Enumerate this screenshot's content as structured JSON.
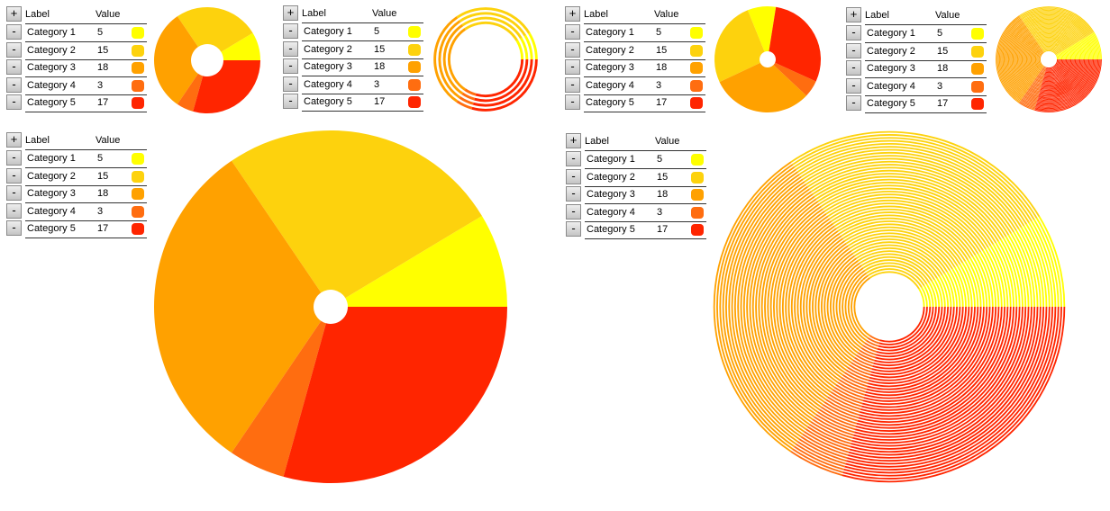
{
  "table": {
    "add_label": "+",
    "remove_label": "-",
    "label_header": "Label",
    "value_header": "Value"
  },
  "colors": [
    "#ffff00",
    "#fdd20d",
    "#ffa100",
    "#ff6d10",
    "#ff2500"
  ],
  "chart_data": [
    {
      "type": "pie",
      "style": "donut",
      "categories": [
        "Category 1",
        "Category 2",
        "Category 3",
        "Category 4",
        "Category 5"
      ],
      "values": [
        5,
        15,
        18,
        3,
        17
      ]
    },
    {
      "type": "pie",
      "style": "concentric-rings",
      "categories": [
        "Category 1",
        "Category 2",
        "Category 3",
        "Category 4",
        "Category 5"
      ],
      "values": [
        5,
        15,
        18,
        3,
        17
      ]
    },
    {
      "type": "pie",
      "style": "donut",
      "categories": [
        "Category 1",
        "Category 2",
        "Category 3",
        "Category 4",
        "Category 5"
      ],
      "values": [
        5,
        15,
        18,
        3,
        17
      ]
    },
    {
      "type": "pie",
      "style": "concentric-rings",
      "categories": [
        "Category 1",
        "Category 2",
        "Category 3",
        "Category 4",
        "Category 5"
      ],
      "values": [
        5,
        15,
        18,
        3,
        17
      ]
    },
    {
      "type": "pie",
      "style": "donut",
      "categories": [
        "Category 1",
        "Category 2",
        "Category 3",
        "Category 4",
        "Category 5"
      ],
      "values": [
        5,
        15,
        18,
        3,
        17
      ]
    },
    {
      "type": "pie",
      "style": "concentric-rings",
      "categories": [
        "Category 1",
        "Category 2",
        "Category 3",
        "Category 4",
        "Category 5"
      ],
      "values": [
        5,
        15,
        18,
        3,
        17
      ]
    }
  ]
}
